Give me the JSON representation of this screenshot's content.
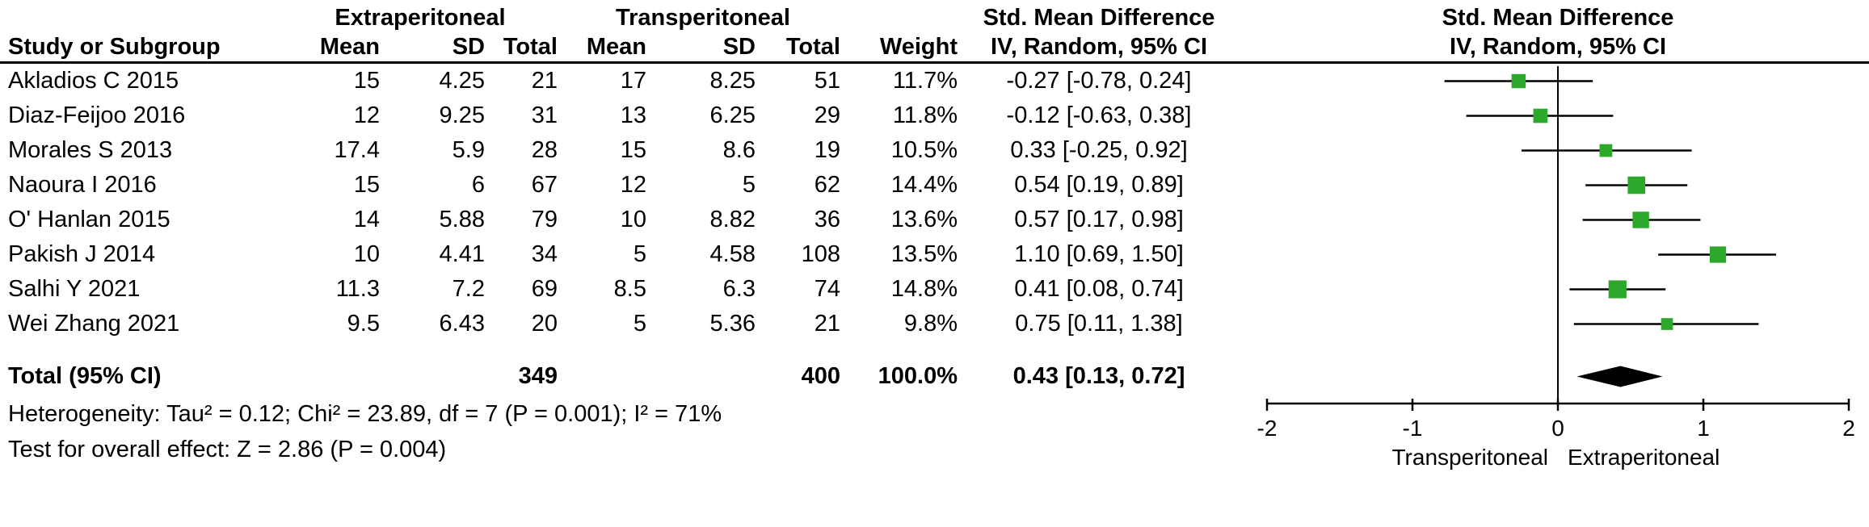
{
  "header": {
    "col_study": "Study or Subgroup",
    "group1": "Extraperitoneal",
    "group2": "Transperitoneal",
    "col_mean": "Mean",
    "col_sd": "SD",
    "col_total": "Total",
    "col_weight": "Weight",
    "smd_title": "Std. Mean Difference",
    "smd_sub": "IV, Random, 95% CI",
    "plot_title": "Std. Mean Difference",
    "plot_sub": "IV, Random, 95% CI"
  },
  "rows": [
    {
      "study": "Akladios C 2015",
      "e_mean": "15",
      "e_sd": "4.25",
      "e_total": "21",
      "t_mean": "17",
      "t_sd": "8.25",
      "t_total": "51",
      "weight": "11.7%",
      "ci_text": "-0.27 [-0.78, 0.24]"
    },
    {
      "study": "Diaz-Feijoo 2016",
      "e_mean": "12",
      "e_sd": "9.25",
      "e_total": "31",
      "t_mean": "13",
      "t_sd": "6.25",
      "t_total": "29",
      "weight": "11.8%",
      "ci_text": "-0.12 [-0.63, 0.38]"
    },
    {
      "study": "Morales S 2013",
      "e_mean": "17.4",
      "e_sd": "5.9",
      "e_total": "28",
      "t_mean": "15",
      "t_sd": "8.6",
      "t_total": "19",
      "weight": "10.5%",
      "ci_text": "0.33 [-0.25, 0.92]"
    },
    {
      "study": "Naoura I 2016",
      "e_mean": "15",
      "e_sd": "6",
      "e_total": "67",
      "t_mean": "12",
      "t_sd": "5",
      "t_total": "62",
      "weight": "14.4%",
      "ci_text": "0.54 [0.19, 0.89]"
    },
    {
      "study": "O' Hanlan 2015",
      "e_mean": "14",
      "e_sd": "5.88",
      "e_total": "79",
      "t_mean": "10",
      "t_sd": "8.82",
      "t_total": "36",
      "weight": "13.6%",
      "ci_text": "0.57 [0.17, 0.98]"
    },
    {
      "study": "Pakish J 2014",
      "e_mean": "10",
      "e_sd": "4.41",
      "e_total": "34",
      "t_mean": "5",
      "t_sd": "4.58",
      "t_total": "108",
      "weight": "13.5%",
      "ci_text": "1.10 [0.69, 1.50]"
    },
    {
      "study": "Salhi Y 2021",
      "e_mean": "11.3",
      "e_sd": "7.2",
      "e_total": "69",
      "t_mean": "8.5",
      "t_sd": "6.3",
      "t_total": "74",
      "weight": "14.8%",
      "ci_text": "0.41 [0.08, 0.74]"
    },
    {
      "study": "Wei Zhang 2021",
      "e_mean": "9.5",
      "e_sd": "6.43",
      "e_total": "20",
      "t_mean": "5",
      "t_sd": "5.36",
      "t_total": "21",
      "weight": "9.8%",
      "ci_text": "0.75 [0.11, 1.38]"
    }
  ],
  "total": {
    "label": "Total (95% CI)",
    "e_total": "349",
    "t_total": "400",
    "weight": "100.0%",
    "ci_text": "0.43 [0.13, 0.72]"
  },
  "footer": {
    "heterogeneity": "Heterogeneity: Tau² = 0.12; Chi² = 23.89, df = 7 (P = 0.001); I² = 71%",
    "overall_effect": "Test for overall effect: Z = 2.86 (P = 0.004)"
  },
  "chart_data": {
    "type": "forest",
    "title": "Std. Mean Difference",
    "subtitle": "IV, Random, 95% CI",
    "x_axis": {
      "min": -2,
      "max": 2,
      "ticks": [
        -2,
        -1,
        0,
        1,
        2
      ],
      "left_label": "Transperitoneal",
      "right_label": "Extraperitoneal"
    },
    "studies": [
      {
        "name": "Akladios C 2015",
        "est": -0.27,
        "lo": -0.78,
        "hi": 0.24,
        "weight": 11.7
      },
      {
        "name": "Diaz-Feijoo 2016",
        "est": -0.12,
        "lo": -0.63,
        "hi": 0.38,
        "weight": 11.8
      },
      {
        "name": "Morales S 2013",
        "est": 0.33,
        "lo": -0.25,
        "hi": 0.92,
        "weight": 10.5
      },
      {
        "name": "Naoura I 2016",
        "est": 0.54,
        "lo": 0.19,
        "hi": 0.89,
        "weight": 14.4
      },
      {
        "name": "O' Hanlan 2015",
        "est": 0.57,
        "lo": 0.17,
        "hi": 0.98,
        "weight": 13.6
      },
      {
        "name": "Pakish J 2014",
        "est": 1.1,
        "lo": 0.69,
        "hi": 1.5,
        "weight": 13.5
      },
      {
        "name": "Salhi Y 2021",
        "est": 0.41,
        "lo": 0.08,
        "hi": 0.74,
        "weight": 14.8
      },
      {
        "name": "Wei Zhang 2021",
        "est": 0.75,
        "lo": 0.11,
        "hi": 1.38,
        "weight": 9.8
      }
    ],
    "total": {
      "est": 0.43,
      "lo": 0.13,
      "hi": 0.72
    },
    "marker_color": "#2DA82D",
    "line_color": "#000000",
    "diamond_color": "#000000"
  }
}
